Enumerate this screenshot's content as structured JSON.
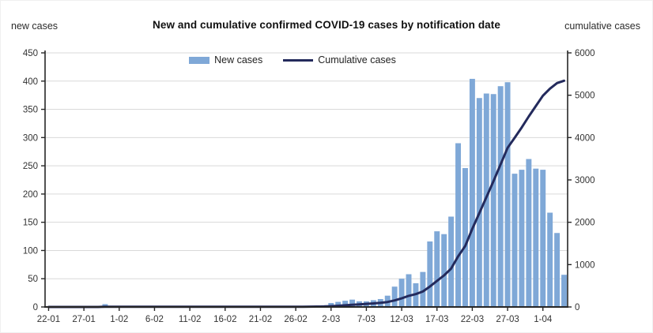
{
  "header": {
    "left_axis_title": "new cases",
    "title": "New and cumulative confirmed COVID-19 cases by notification date",
    "right_axis_title": "cumulative cases"
  },
  "legend": [
    {
      "label": "New cases",
      "type": "bar",
      "color": "#7FA8D7"
    },
    {
      "label": "Cumulative cases",
      "type": "line",
      "color": "#232A5C"
    }
  ],
  "chart_data": {
    "type": "bar",
    "title": "New and cumulative confirmed COVID-19 cases by notification date",
    "grid": true,
    "legend_position": "top-center",
    "colors": {
      "grid": "#D9D9D9",
      "axis": "#262626",
      "tick_text": "#333333"
    },
    "left_axis": {
      "label": "new cases",
      "min": 0,
      "max": 450,
      "step": 50
    },
    "right_axis": {
      "label": "cumulative cases",
      "min": 0,
      "max": 6000,
      "step": 1000
    },
    "x_tick_labels": [
      "22-01",
      "27-01",
      "1-02",
      "6-02",
      "11-02",
      "16-02",
      "21-02",
      "26-02",
      "2-03",
      "7-03",
      "12-03",
      "17-03",
      "22-03",
      "27-03",
      "1-04"
    ],
    "x_tick_every": 5,
    "x": [
      "22-01",
      "23-01",
      "24-01",
      "25-01",
      "26-01",
      "27-01",
      "28-01",
      "29-01",
      "30-01",
      "31-01",
      "1-02",
      "2-02",
      "3-02",
      "4-02",
      "5-02",
      "6-02",
      "7-02",
      "8-02",
      "9-02",
      "10-02",
      "11-02",
      "12-02",
      "13-02",
      "14-02",
      "15-02",
      "16-02",
      "17-02",
      "18-02",
      "19-02",
      "20-02",
      "21-02",
      "22-02",
      "23-02",
      "24-02",
      "25-02",
      "26-02",
      "27-02",
      "28-02",
      "29-02",
      "1-03",
      "2-03",
      "3-03",
      "4-03",
      "5-03",
      "6-03",
      "7-03",
      "8-03",
      "9-03",
      "10-03",
      "11-03",
      "12-03",
      "13-03",
      "14-03",
      "15-03",
      "16-03",
      "17-03",
      "18-03",
      "19-03",
      "20-03",
      "21-03",
      "22-03",
      "23-03",
      "24-03",
      "25-03",
      "26-03",
      "27-03",
      "28-03",
      "29-03",
      "30-03",
      "31-03",
      "1-04",
      "2-04",
      "3-04",
      "4-04"
    ],
    "series": [
      {
        "name": "New cases",
        "type": "bar",
        "axis": "left",
        "color": "#7FA8D7",
        "values": [
          0,
          0,
          0,
          0,
          0,
          0,
          0,
          0,
          5,
          0,
          0,
          0,
          0,
          0,
          0,
          0,
          0,
          0,
          0,
          0,
          0,
          0,
          0,
          0,
          0,
          0,
          0,
          0,
          0,
          0,
          0,
          0,
          0,
          0,
          0,
          0,
          1,
          1,
          2,
          3,
          7,
          9,
          11,
          13,
          10,
          10,
          12,
          14,
          20,
          36,
          50,
          58,
          42,
          62,
          116,
          134,
          129,
          160,
          290,
          246,
          404,
          370,
          378,
          377,
          391,
          398,
          236,
          243,
          262,
          245,
          243,
          167,
          131,
          57
        ]
      },
      {
        "name": "Cumulative cases",
        "type": "line",
        "axis": "right",
        "color": "#232A5C",
        "values": [
          0,
          0,
          0,
          0,
          0,
          0,
          0,
          0,
          5,
          5,
          5,
          5,
          5,
          5,
          5,
          5,
          5,
          5,
          5,
          5,
          5,
          5,
          5,
          5,
          5,
          5,
          5,
          5,
          5,
          5,
          5,
          5,
          5,
          5,
          5,
          5,
          6,
          7,
          9,
          12,
          19,
          28,
          39,
          52,
          62,
          72,
          84,
          98,
          118,
          154,
          204,
          262,
          304,
          366,
          482,
          616,
          745,
          905,
          1195,
          1441,
          1845,
          2215,
          2593,
          2970,
          3361,
          3759,
          3995,
          4238,
          4500,
          4745,
          4988,
          5155,
          5286,
          5343
        ]
      }
    ]
  }
}
